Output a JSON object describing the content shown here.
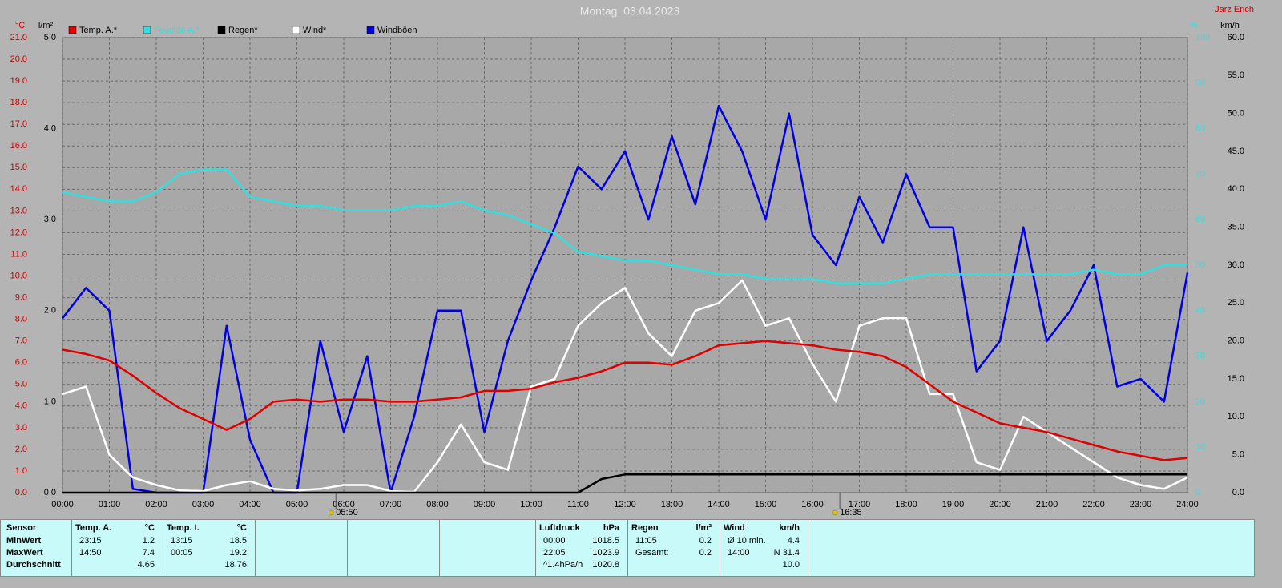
{
  "header": {
    "title": "Montag, 03.04.2023",
    "author": "Jarz Erich"
  },
  "chart_data": {
    "type": "line",
    "units": {
      "y": "°C",
      "y3": "l/m²",
      "y4": "%",
      "y2": "km/h"
    },
    "x": [
      0,
      0.5,
      1,
      1.5,
      2,
      2.5,
      3,
      3.5,
      4,
      4.5,
      5,
      5.5,
      6,
      6.5,
      7,
      7.5,
      8,
      8.5,
      9,
      9.5,
      10,
      10.5,
      11,
      11.5,
      12,
      12.5,
      13,
      13.5,
      14,
      14.5,
      15,
      15.5,
      16,
      16.5,
      17,
      17.5,
      18,
      18.5,
      19,
      19.5,
      20,
      20.5,
      21,
      21.5,
      22,
      22.5,
      23,
      23.5,
      24
    ],
    "xlim": [
      0,
      24
    ],
    "xticks": [
      {
        "value": 0,
        "label": "00:00"
      },
      {
        "value": 1,
        "label": "01:00"
      },
      {
        "value": 2,
        "label": "02:00"
      },
      {
        "value": 3,
        "label": "03:00"
      },
      {
        "value": 4,
        "label": "04:00"
      },
      {
        "value": 5,
        "label": "05:00"
      },
      {
        "value": 6,
        "label": "06:00"
      },
      {
        "value": 7,
        "label": "07:00"
      },
      {
        "value": 8,
        "label": "08:00"
      },
      {
        "value": 9,
        "label": "09:00"
      },
      {
        "value": 10,
        "label": "10:00"
      },
      {
        "value": 11,
        "label": "11:00"
      },
      {
        "value": 12,
        "label": "12:00"
      },
      {
        "value": 13,
        "label": "13:00"
      },
      {
        "value": 14,
        "label": "14:00"
      },
      {
        "value": 15,
        "label": "15:00"
      },
      {
        "value": 16,
        "label": "16:00"
      },
      {
        "value": 17,
        "label": "17:00"
      },
      {
        "value": 18,
        "label": "18:00"
      },
      {
        "value": 19,
        "label": "19:00"
      },
      {
        "value": 20,
        "label": "20:00"
      },
      {
        "value": 21,
        "label": "21:00"
      },
      {
        "value": 22,
        "label": "22:00"
      },
      {
        "value": 23,
        "label": "23:00"
      },
      {
        "value": 24,
        "label": "24:00"
      }
    ],
    "ylim": [
      0,
      21
    ],
    "yticks": [
      {
        "value": 0,
        "label": "0.0"
      },
      {
        "value": 1,
        "label": "1.0"
      },
      {
        "value": 2,
        "label": "2.0"
      },
      {
        "value": 3,
        "label": "3.0"
      },
      {
        "value": 4,
        "label": "4.0"
      },
      {
        "value": 5,
        "label": "5.0"
      },
      {
        "value": 6,
        "label": "6.0"
      },
      {
        "value": 7,
        "label": "7.0"
      },
      {
        "value": 8,
        "label": "8.0"
      },
      {
        "value": 9,
        "label": "9.0"
      },
      {
        "value": 10,
        "label": "10.0"
      },
      {
        "value": 11,
        "label": "11.0"
      },
      {
        "value": 12,
        "label": "12.0"
      },
      {
        "value": 13,
        "label": "13.0"
      },
      {
        "value": 14,
        "label": "14.0"
      },
      {
        "value": 15,
        "label": "15.0"
      },
      {
        "value": 16,
        "label": "16.0"
      },
      {
        "value": 17,
        "label": "17.0"
      },
      {
        "value": 18,
        "label": "18.0"
      },
      {
        "value": 19,
        "label": "19.0"
      },
      {
        "value": 20,
        "label": "20.0"
      },
      {
        "value": 21,
        "label": "21.0"
      }
    ],
    "y3lim": [
      0,
      5
    ],
    "y3ticks": [
      {
        "value": 0,
        "label": "0.0"
      },
      {
        "value": 1,
        "label": "1.0"
      },
      {
        "value": 2,
        "label": "2.0"
      },
      {
        "value": 3,
        "label": "3.0"
      },
      {
        "value": 4,
        "label": "4.0"
      },
      {
        "value": 5,
        "label": "5.0"
      }
    ],
    "y4lim": [
      0,
      100
    ],
    "y4ticks": [
      0,
      10,
      20,
      30,
      40,
      50,
      60,
      70,
      80,
      90,
      100
    ],
    "y2lim": [
      0,
      60
    ],
    "y2ticks": [
      {
        "value": 0,
        "label": "0.0"
      },
      {
        "value": 5,
        "label": "5.0"
      },
      {
        "value": 10,
        "label": "10.0"
      },
      {
        "value": 15,
        "label": "15.0"
      },
      {
        "value": 20,
        "label": "20.0"
      },
      {
        "value": 25,
        "label": "25.0"
      },
      {
        "value": 30,
        "label": "30.0"
      },
      {
        "value": 35,
        "label": "35.0"
      },
      {
        "value": 40,
        "label": "40.0"
      },
      {
        "value": 45,
        "label": "45.0"
      },
      {
        "value": 50,
        "label": "50.0"
      },
      {
        "value": 55,
        "label": "55.0"
      },
      {
        "value": 60,
        "label": "60.0"
      }
    ],
    "grid": true,
    "series": [
      {
        "name": "Temp. A.*",
        "color": "#e00000",
        "axis": "y",
        "values": [
          6.6,
          6.4,
          6.1,
          5.4,
          4.6,
          3.9,
          3.4,
          2.9,
          3.4,
          4.2,
          4.3,
          4.2,
          4.3,
          4.3,
          4.2,
          4.2,
          4.3,
          4.4,
          4.7,
          4.7,
          4.8,
          5.1,
          5.3,
          5.6,
          6.0,
          6.0,
          5.9,
          6.3,
          6.8,
          6.9,
          7.0,
          6.9,
          6.8,
          6.6,
          6.5,
          6.3,
          5.8,
          5.0,
          4.2,
          3.7,
          3.2,
          3.0,
          2.8,
          2.5,
          2.2,
          1.9,
          1.7,
          1.5,
          1.6
        ]
      },
      {
        "name": "Feuchte A.*",
        "color": "#30e0e0",
        "axis": "y4",
        "values": [
          66,
          65,
          64,
          64,
          66,
          70,
          71,
          71,
          65,
          64,
          63,
          63,
          62,
          62,
          62,
          63,
          63,
          64,
          62,
          61,
          59,
          57,
          53,
          52,
          51,
          51,
          50,
          49,
          48,
          48,
          47,
          47,
          47,
          46,
          46,
          46,
          47,
          48,
          48,
          48,
          48,
          48,
          48,
          48,
          49,
          48,
          48,
          50,
          50
        ]
      },
      {
        "name": "Regen*",
        "color": "#000000",
        "axis": "y3",
        "values": [
          0,
          0,
          0,
          0,
          0,
          0,
          0,
          0,
          0,
          0,
          0,
          0,
          0,
          0,
          0,
          0,
          0,
          0,
          0,
          0,
          0,
          0,
          0,
          0.15,
          0.2,
          0.2,
          0.2,
          0.2,
          0.2,
          0.2,
          0.2,
          0.2,
          0.2,
          0.2,
          0.2,
          0.2,
          0.2,
          0.2,
          0.2,
          0.2,
          0.2,
          0.2,
          0.2,
          0.2,
          0.2,
          0.2,
          0.2,
          0.2,
          0.2
        ]
      },
      {
        "name": "Wind*",
        "color": "#ffffff",
        "axis": "y2",
        "values": [
          13,
          14,
          5,
          2,
          1,
          0.3,
          0.2,
          1,
          1.5,
          0.5,
          0.3,
          0.5,
          1,
          1,
          0.2,
          0.1,
          4,
          9,
          4,
          3,
          14,
          15,
          22,
          25,
          27,
          21,
          18,
          24,
          25,
          28,
          22,
          23,
          17,
          12,
          22,
          23,
          23,
          13,
          13,
          4,
          3,
          10,
          8,
          6,
          4,
          2,
          1,
          0.5,
          2
        ]
      },
      {
        "name": "Windböen",
        "color": "#0000e0",
        "axis": "y2",
        "values": [
          23,
          27,
          24,
          0.5,
          0,
          0,
          0,
          22,
          7,
          0,
          0,
          20,
          8,
          18,
          0,
          10,
          24,
          24,
          8,
          20,
          28,
          35,
          43,
          40,
          45,
          36,
          47,
          38,
          51,
          45,
          36,
          50,
          34,
          30,
          39,
          33,
          42,
          35,
          35,
          16,
          20,
          35,
          20,
          24,
          30,
          14,
          15,
          12,
          29
        ]
      }
    ],
    "annotations": [
      {
        "x": 5.8333,
        "label": "05:50"
      },
      {
        "x": 16.5833,
        "label": "16:35"
      }
    ]
  },
  "stats": {
    "sensor": {
      "title": "Sensor",
      "rows": [
        "MinWert",
        "MaxWert",
        "Durchschnitt"
      ]
    },
    "blocks": [
      {
        "title": "Temp. A.",
        "unit": "°C",
        "rows": [
          {
            "time": "23:15",
            "value": "1.2"
          },
          {
            "time": "14:50",
            "value": "7.4"
          },
          {
            "value": "4.65"
          }
        ]
      },
      {
        "title": "Temp. I.",
        "unit": "°C",
        "rows": [
          {
            "time": "13:15",
            "value": "18.5"
          },
          {
            "time": "00:05",
            "value": "19.2"
          },
          {
            "value": "18.76"
          }
        ]
      },
      {
        "title": "Luftdruck",
        "unit": "hPa",
        "rows": [
          {
            "time": "00:00",
            "value": "1018.5"
          },
          {
            "time": "22:05",
            "value": "1023.9"
          },
          {
            "time": "^1.4hPa/h",
            "value": "1020.8"
          }
        ]
      },
      {
        "title": "Regen",
        "unit": "l/m²",
        "rows": [
          {
            "time": "11:05",
            "value": "0.2"
          },
          {
            "time": "Gesamt:",
            "value": "0.2"
          }
        ]
      },
      {
        "title": "Wind",
        "unit": "km/h",
        "rows": [
          {
            "time": "Ø 10 min.",
            "value": "4.4"
          },
          {
            "time": "14:00",
            "value": "N 31.4"
          },
          {
            "value": "10.0"
          }
        ]
      }
    ]
  }
}
